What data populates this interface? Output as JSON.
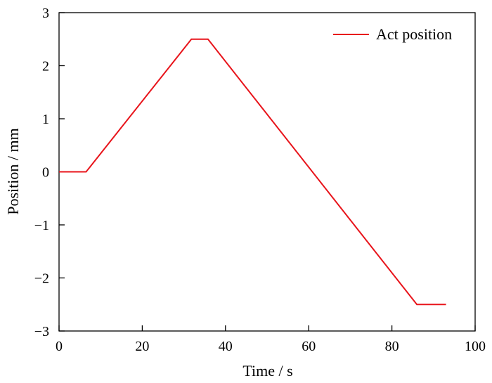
{
  "chart_data": {
    "type": "line",
    "title": "",
    "xlabel": "Time / s",
    "ylabel": "Position / mm",
    "xlim": [
      0,
      100
    ],
    "ylim": [
      -3,
      3
    ],
    "xticks": [
      0,
      20,
      40,
      60,
      80,
      100
    ],
    "yticks": [
      3,
      2,
      1,
      0,
      -1,
      -2,
      -3
    ],
    "xtick_labels": [
      "0",
      "20",
      "40",
      "60",
      "80",
      "100"
    ],
    "ytick_labels": [
      "3",
      "2",
      "1",
      "0",
      "−1",
      "−2",
      "−3"
    ],
    "grid": false,
    "legend_position": "top-right",
    "series": [
      {
        "name": "Act position",
        "color": "#e8141b",
        "x": [
          0,
          6.5,
          31.8,
          35.8,
          86,
          93
        ],
        "y": [
          0,
          0,
          2.5,
          2.5,
          -2.5,
          -2.5
        ]
      }
    ]
  }
}
